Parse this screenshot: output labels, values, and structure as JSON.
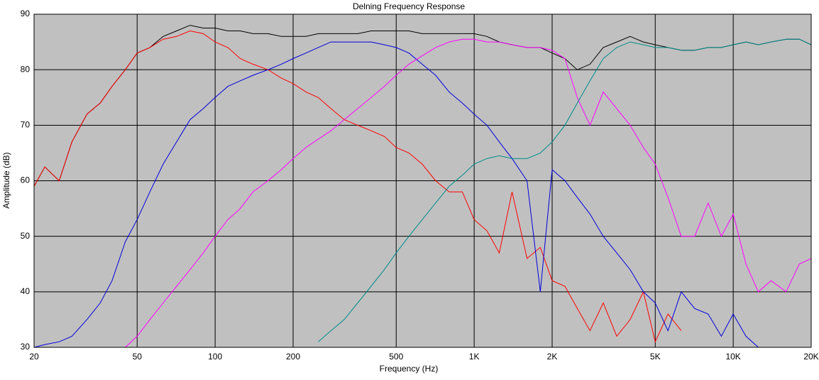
{
  "chart_data": {
    "type": "line",
    "title": "Delning Frequency Response",
    "xlabel": "Frequency (Hz)",
    "ylabel": "Amplitude (dB)",
    "xscale": "log",
    "grid": true,
    "background": "#c0c0c0",
    "xlim": [
      20,
      20000
    ],
    "ylim": [
      30,
      90
    ],
    "xticks": [
      20,
      50,
      100,
      200,
      500,
      {
        "value": 1000,
        "label": "1K"
      },
      {
        "value": 2000,
        "label": "2K"
      },
      {
        "value": 5000,
        "label": "5K"
      },
      {
        "value": 10000,
        "label": "10K"
      },
      {
        "value": 20000,
        "label": "20K"
      }
    ],
    "yticks": [
      30,
      40,
      50,
      60,
      70,
      80,
      90
    ],
    "x": [
      20,
      22,
      25,
      28,
      32,
      36,
      40,
      45,
      50,
      56,
      63,
      71,
      80,
      90,
      100,
      112,
      125,
      140,
      160,
      180,
      200,
      224,
      250,
      280,
      315,
      355,
      400,
      450,
      500,
      560,
      630,
      710,
      800,
      900,
      1000,
      1120,
      1250,
      1400,
      1600,
      1800,
      2000,
      2240,
      2500,
      2800,
      3150,
      3550,
      4000,
      4500,
      5000,
      5600,
      6300,
      7100,
      8000,
      9000,
      10000,
      11200,
      12500,
      14000,
      16000,
      18000,
      20000
    ],
    "series": [
      {
        "color": "#000000",
        "values": [
          59,
          62.5,
          60,
          67,
          72,
          74,
          77,
          80,
          83,
          84,
          86,
          87,
          88,
          87.5,
          87.5,
          87,
          87,
          86.5,
          86.5,
          86,
          86,
          86,
          86.5,
          86.5,
          86.5,
          86.5,
          87,
          87,
          87,
          87,
          86.5,
          86.5,
          86.5,
          86.5,
          86.5,
          86,
          85,
          84.5,
          84,
          84,
          83,
          82,
          80,
          81,
          84,
          85,
          86,
          85,
          84.5,
          84,
          83.5,
          83.5,
          84,
          84,
          84.5,
          85,
          84.5,
          85,
          85.5,
          85.5,
          84.5
        ]
      },
      {
        "color": "#ff0000",
        "values": [
          59,
          62.5,
          60,
          67,
          72,
          74,
          77,
          80,
          83,
          84,
          85.5,
          86,
          87,
          86.5,
          85,
          84,
          82,
          81,
          80,
          78.5,
          77.5,
          76,
          75,
          73,
          71,
          70,
          69,
          68,
          66,
          65,
          63,
          60,
          58,
          58,
          53,
          51,
          47,
          58,
          46,
          48,
          42,
          41,
          37,
          33,
          38,
          32,
          35,
          40,
          31,
          36,
          33,
          null,
          null,
          null,
          null,
          null,
          null,
          null,
          null,
          null,
          null
        ]
      },
      {
        "color": "#0000dd",
        "values": [
          30,
          30.5,
          31,
          32,
          35,
          38,
          42,
          49,
          53,
          58,
          63,
          67,
          71,
          73,
          75,
          77,
          78,
          79,
          80,
          81,
          82,
          83,
          84,
          85,
          85,
          85,
          85,
          84.5,
          84,
          83,
          81,
          79,
          76,
          74,
          72,
          70,
          67,
          64,
          60,
          40,
          62,
          60,
          57,
          54,
          50,
          47,
          44,
          40,
          38,
          33,
          40,
          37,
          36,
          32,
          36,
          32,
          30,
          null,
          null,
          null,
          null
        ]
      },
      {
        "color": "#ff00ff",
        "values": [
          null,
          null,
          null,
          null,
          null,
          null,
          null,
          30,
          32,
          35,
          38,
          41,
          44,
          47,
          50,
          53,
          55,
          58,
          60,
          62,
          64,
          66,
          67.5,
          69,
          71,
          73,
          75,
          77,
          79,
          81,
          82.5,
          84,
          85,
          85.5,
          85.5,
          85,
          85,
          84.5,
          84,
          84,
          83.5,
          82,
          75,
          70,
          76,
          73,
          70,
          66,
          63,
          57,
          50,
          50,
          56,
          50,
          54,
          45,
          40,
          42,
          40,
          45,
          46
        ]
      },
      {
        "color": "#008b8b",
        "values": [
          null,
          null,
          null,
          null,
          null,
          null,
          null,
          null,
          null,
          null,
          null,
          null,
          null,
          null,
          null,
          null,
          null,
          null,
          null,
          null,
          null,
          null,
          31,
          33,
          35,
          38,
          41,
          44,
          47,
          50,
          53,
          56,
          59,
          61,
          63,
          64,
          64.5,
          64,
          64,
          65,
          67,
          70,
          74,
          78,
          82,
          84,
          85,
          84.5,
          84,
          84,
          83.5,
          83.5,
          84,
          84,
          84.5,
          85,
          84.5,
          85,
          85.5,
          85.5,
          84.5
        ]
      }
    ]
  }
}
